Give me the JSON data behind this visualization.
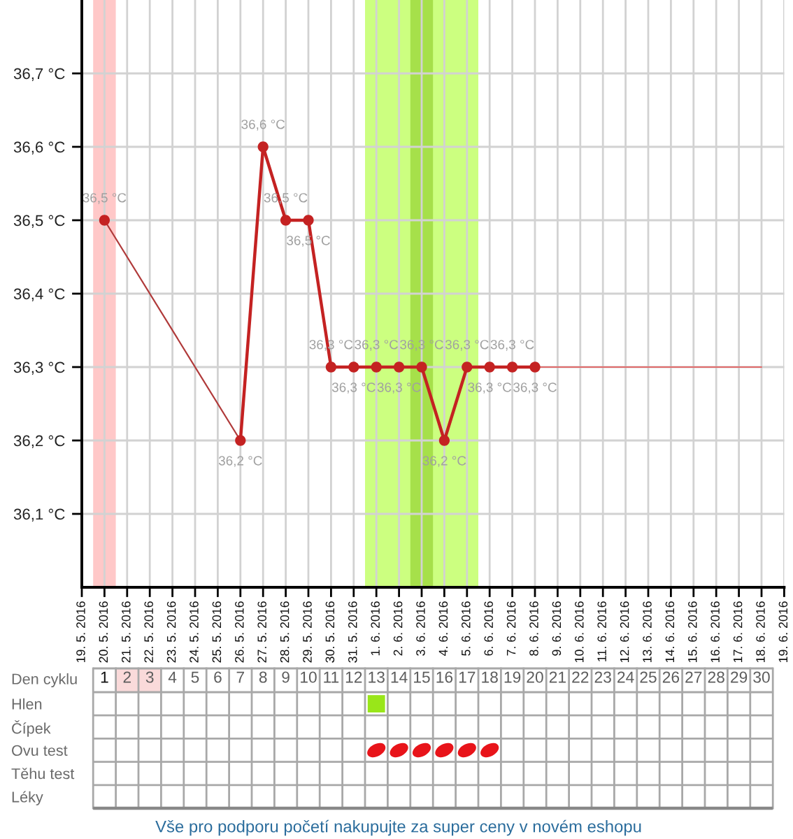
{
  "chart_data": [
    {
      "type": "line",
      "x": [
        "2016-05-20",
        "2016-05-21",
        "2016-05-22",
        "2016-05-23",
        "2016-05-24",
        "2016-05-25",
        "2016-05-26",
        "2016-05-27",
        "2016-05-28",
        "2016-05-29",
        "2016-05-30",
        "2016-05-31",
        "2016-06-01",
        "2016-06-02",
        "2016-06-03",
        "2016-06-04",
        "2016-06-05",
        "2016-06-06",
        "2016-06-07",
        "2016-06-08"
      ],
      "series": [
        {
          "color": "#c42222",
          "values": [
            36.5,
            null,
            null,
            null,
            null,
            null,
            36.2,
            36.6,
            36.5,
            36.5,
            36.3,
            36.3,
            36.3,
            36.3,
            36.3,
            36.2,
            36.3,
            36.3,
            36.3,
            36.3
          ],
          "value_labels": [
            "36,5 °C",
            null,
            null,
            null,
            null,
            null,
            "36,2 °C",
            "36,6 °C",
            "36,5 °C",
            "36,5 °C",
            "36,3 °C",
            "36,3 °C",
            "36,3 °C",
            "36,3 °C",
            "36,3 °C",
            "36,2 °C",
            "36,3 °C",
            "36,3 °C",
            "36,3 °C",
            "36,3 °C"
          ]
        },
        {
          "x": [
            "2016-05-20",
            "2016-05-26"
          ],
          "values": [
            36.5,
            36.2
          ],
          "color": "#b03a3a",
          "marker": "none"
        },
        {
          "x": [
            "2016-06-08",
            "2016-06-18"
          ],
          "values": [
            36.3,
            36.3
          ],
          "color": "#e06a6a",
          "marker": "none"
        }
      ],
      "marker": "circle",
      "grid": true,
      "xlim": [
        "2016-05-19",
        "2016-06-19"
      ],
      "xticks": [
        {
          "value": "2016-05-19",
          "label": "19. 5. 2016"
        },
        {
          "value": "2016-05-20",
          "label": "20. 5. 2016"
        },
        {
          "value": "2016-05-21",
          "label": "21. 5. 2016"
        },
        {
          "value": "2016-05-22",
          "label": "22. 5. 2016"
        },
        {
          "value": "2016-05-23",
          "label": "23. 5. 2016"
        },
        {
          "value": "2016-05-24",
          "label": "24. 5. 2016"
        },
        {
          "value": "2016-05-25",
          "label": "25. 5. 2016"
        },
        {
          "value": "2016-05-26",
          "label": "26. 5. 2016"
        },
        {
          "value": "2016-05-27",
          "label": "27. 5. 2016"
        },
        {
          "value": "2016-05-28",
          "label": "28. 5. 2016"
        },
        {
          "value": "2016-05-29",
          "label": "29. 5. 2016"
        },
        {
          "value": "2016-05-30",
          "label": "30. 5. 2016"
        },
        {
          "value": "2016-05-31",
          "label": "31. 5. 2016"
        },
        {
          "value": "2016-06-01",
          "label": "1. 6. 2016"
        },
        {
          "value": "2016-06-02",
          "label": "2. 6. 2016"
        },
        {
          "value": "2016-06-03",
          "label": "3. 6. 2016"
        },
        {
          "value": "2016-06-04",
          "label": "4. 6. 2016"
        },
        {
          "value": "2016-06-05",
          "label": "5. 6. 2016"
        },
        {
          "value": "2016-06-06",
          "label": "6. 6. 2016"
        },
        {
          "value": "2016-06-07",
          "label": "7. 6. 2016"
        },
        {
          "value": "2016-06-08",
          "label": "8. 6. 2016"
        },
        {
          "value": "2016-06-09",
          "label": "9. 6. 2016"
        },
        {
          "value": "2016-06-10",
          "label": "10. 6. 2016"
        },
        {
          "value": "2016-06-11",
          "label": "11. 6. 2016"
        },
        {
          "value": "2016-06-12",
          "label": "12. 6. 2016"
        },
        {
          "value": "2016-06-13",
          "label": "13. 6. 2016"
        },
        {
          "value": "2016-06-14",
          "label": "14. 6. 2016"
        },
        {
          "value": "2016-06-15",
          "label": "15. 6. 2016"
        },
        {
          "value": "2016-06-16",
          "label": "16. 6. 2016"
        },
        {
          "value": "2016-06-17",
          "label": "17. 6. 2016"
        },
        {
          "value": "2016-06-18",
          "label": "18. 6. 2016"
        },
        {
          "value": "2016-06-19",
          "label": "19. 6. 2016"
        }
      ],
      "ylim": [
        36.0,
        36.8
      ],
      "yticks": [
        {
          "value": 36.1,
          "label": "36,1 °C"
        },
        {
          "value": 36.2,
          "label": "36,2 °C"
        },
        {
          "value": 36.3,
          "label": "36,3 °C"
        },
        {
          "value": 36.4,
          "label": "36,4 °C"
        },
        {
          "value": 36.5,
          "label": "36,5 °C"
        },
        {
          "value": 36.6,
          "label": "36,6 °C"
        },
        {
          "value": 36.7,
          "label": "36,7 °C"
        }
      ],
      "bands": [
        {
          "axis": "x",
          "from": "2016-05-19T12:00",
          "to": "2016-05-20T12:00",
          "color": "#ffc8c8"
        },
        {
          "axis": "x",
          "from": "2016-05-31T12:00",
          "to": "2016-06-05T12:00",
          "color": "#ccff80"
        },
        {
          "axis": "x",
          "from": "2016-06-02T12:00",
          "to": "2016-06-03T12:00",
          "color": "#a6e04a"
        }
      ]
    },
    {
      "type": "scatter",
      "orientation": "horizontal",
      "xlabel": "Den cyklu",
      "categories": [
        "Hlen",
        "Čípek",
        "Ovu test",
        "Těhu test",
        "Léky"
      ],
      "xlim": [
        0.5,
        30.5
      ],
      "xticks": [
        1,
        2,
        3,
        4,
        5,
        6,
        7,
        8,
        9,
        10,
        11,
        12,
        13,
        14,
        15,
        16,
        17,
        18,
        19,
        20,
        21,
        22,
        23,
        24,
        25,
        26,
        27,
        28,
        29,
        30
      ],
      "series": [
        {
          "color": "#99e619",
          "marker": "square",
          "x": [
            "Hlen"
          ],
          "values": [
            13
          ]
        },
        {
          "color": "#e8141a",
          "marker": "circle",
          "x": [
            "Ovu test",
            "Ovu test",
            "Ovu test",
            "Ovu test",
            "Ovu test",
            "Ovu test"
          ],
          "values": [
            13,
            14,
            15,
            16,
            17,
            18
          ]
        }
      ],
      "bands": [
        {
          "axis": "x",
          "from": 1.5,
          "to": 3.5,
          "color": "#fadada"
        }
      ],
      "annotations": [
        "Vše pro podporu početí nakupujte za super ceny v novém eshopu"
      ]
    }
  ]
}
